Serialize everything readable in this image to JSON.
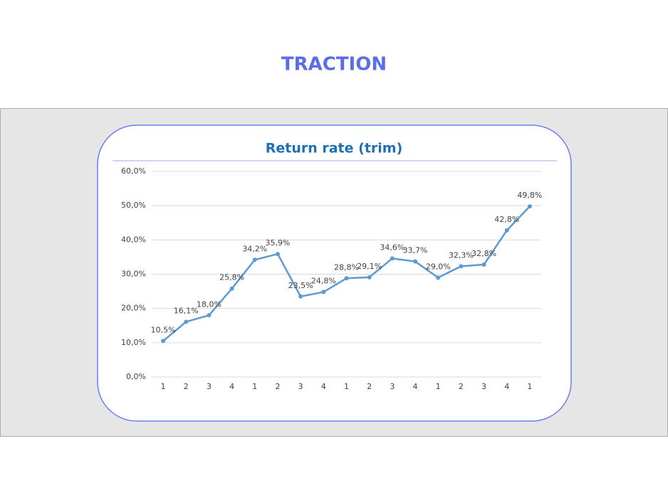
{
  "heading": "TRACTION",
  "chart_data": {
    "type": "line",
    "title": "Return rate (trim)",
    "categories": [
      "1",
      "2",
      "3",
      "4",
      "1",
      "2",
      "3",
      "4",
      "1",
      "2",
      "3",
      "4",
      "1",
      "2",
      "3",
      "4",
      "1"
    ],
    "values": [
      10.5,
      16.1,
      18.0,
      25.8,
      34.2,
      35.9,
      23.5,
      24.8,
      28.8,
      29.1,
      34.6,
      33.7,
      29.0,
      32.3,
      32.8,
      42.8,
      49.8
    ],
    "value_labels": [
      "10,5%",
      "16,1%",
      "18,0%",
      "25,8%",
      "34,2%",
      "35,9%",
      "23,5%",
      "24,8%",
      "28,8%",
      "29,1%",
      "34,6%",
      "33,7%",
      "29,0%",
      "32,3%",
      "32,8%",
      "42,8%",
      "49,8%"
    ],
    "color": "#5b9bd5",
    "ylim": [
      0,
      60
    ],
    "yticks": [
      {
        "value": 0,
        "label": "0,0%"
      },
      {
        "value": 10,
        "label": "10,0%"
      },
      {
        "value": 20,
        "label": "20,0%"
      },
      {
        "value": 30,
        "label": "30,0%"
      },
      {
        "value": 40,
        "label": "40,0%"
      },
      {
        "value": 50,
        "label": "50,0%"
      },
      {
        "value": 60,
        "label": "60,0%"
      }
    ],
    "grid": true
  }
}
